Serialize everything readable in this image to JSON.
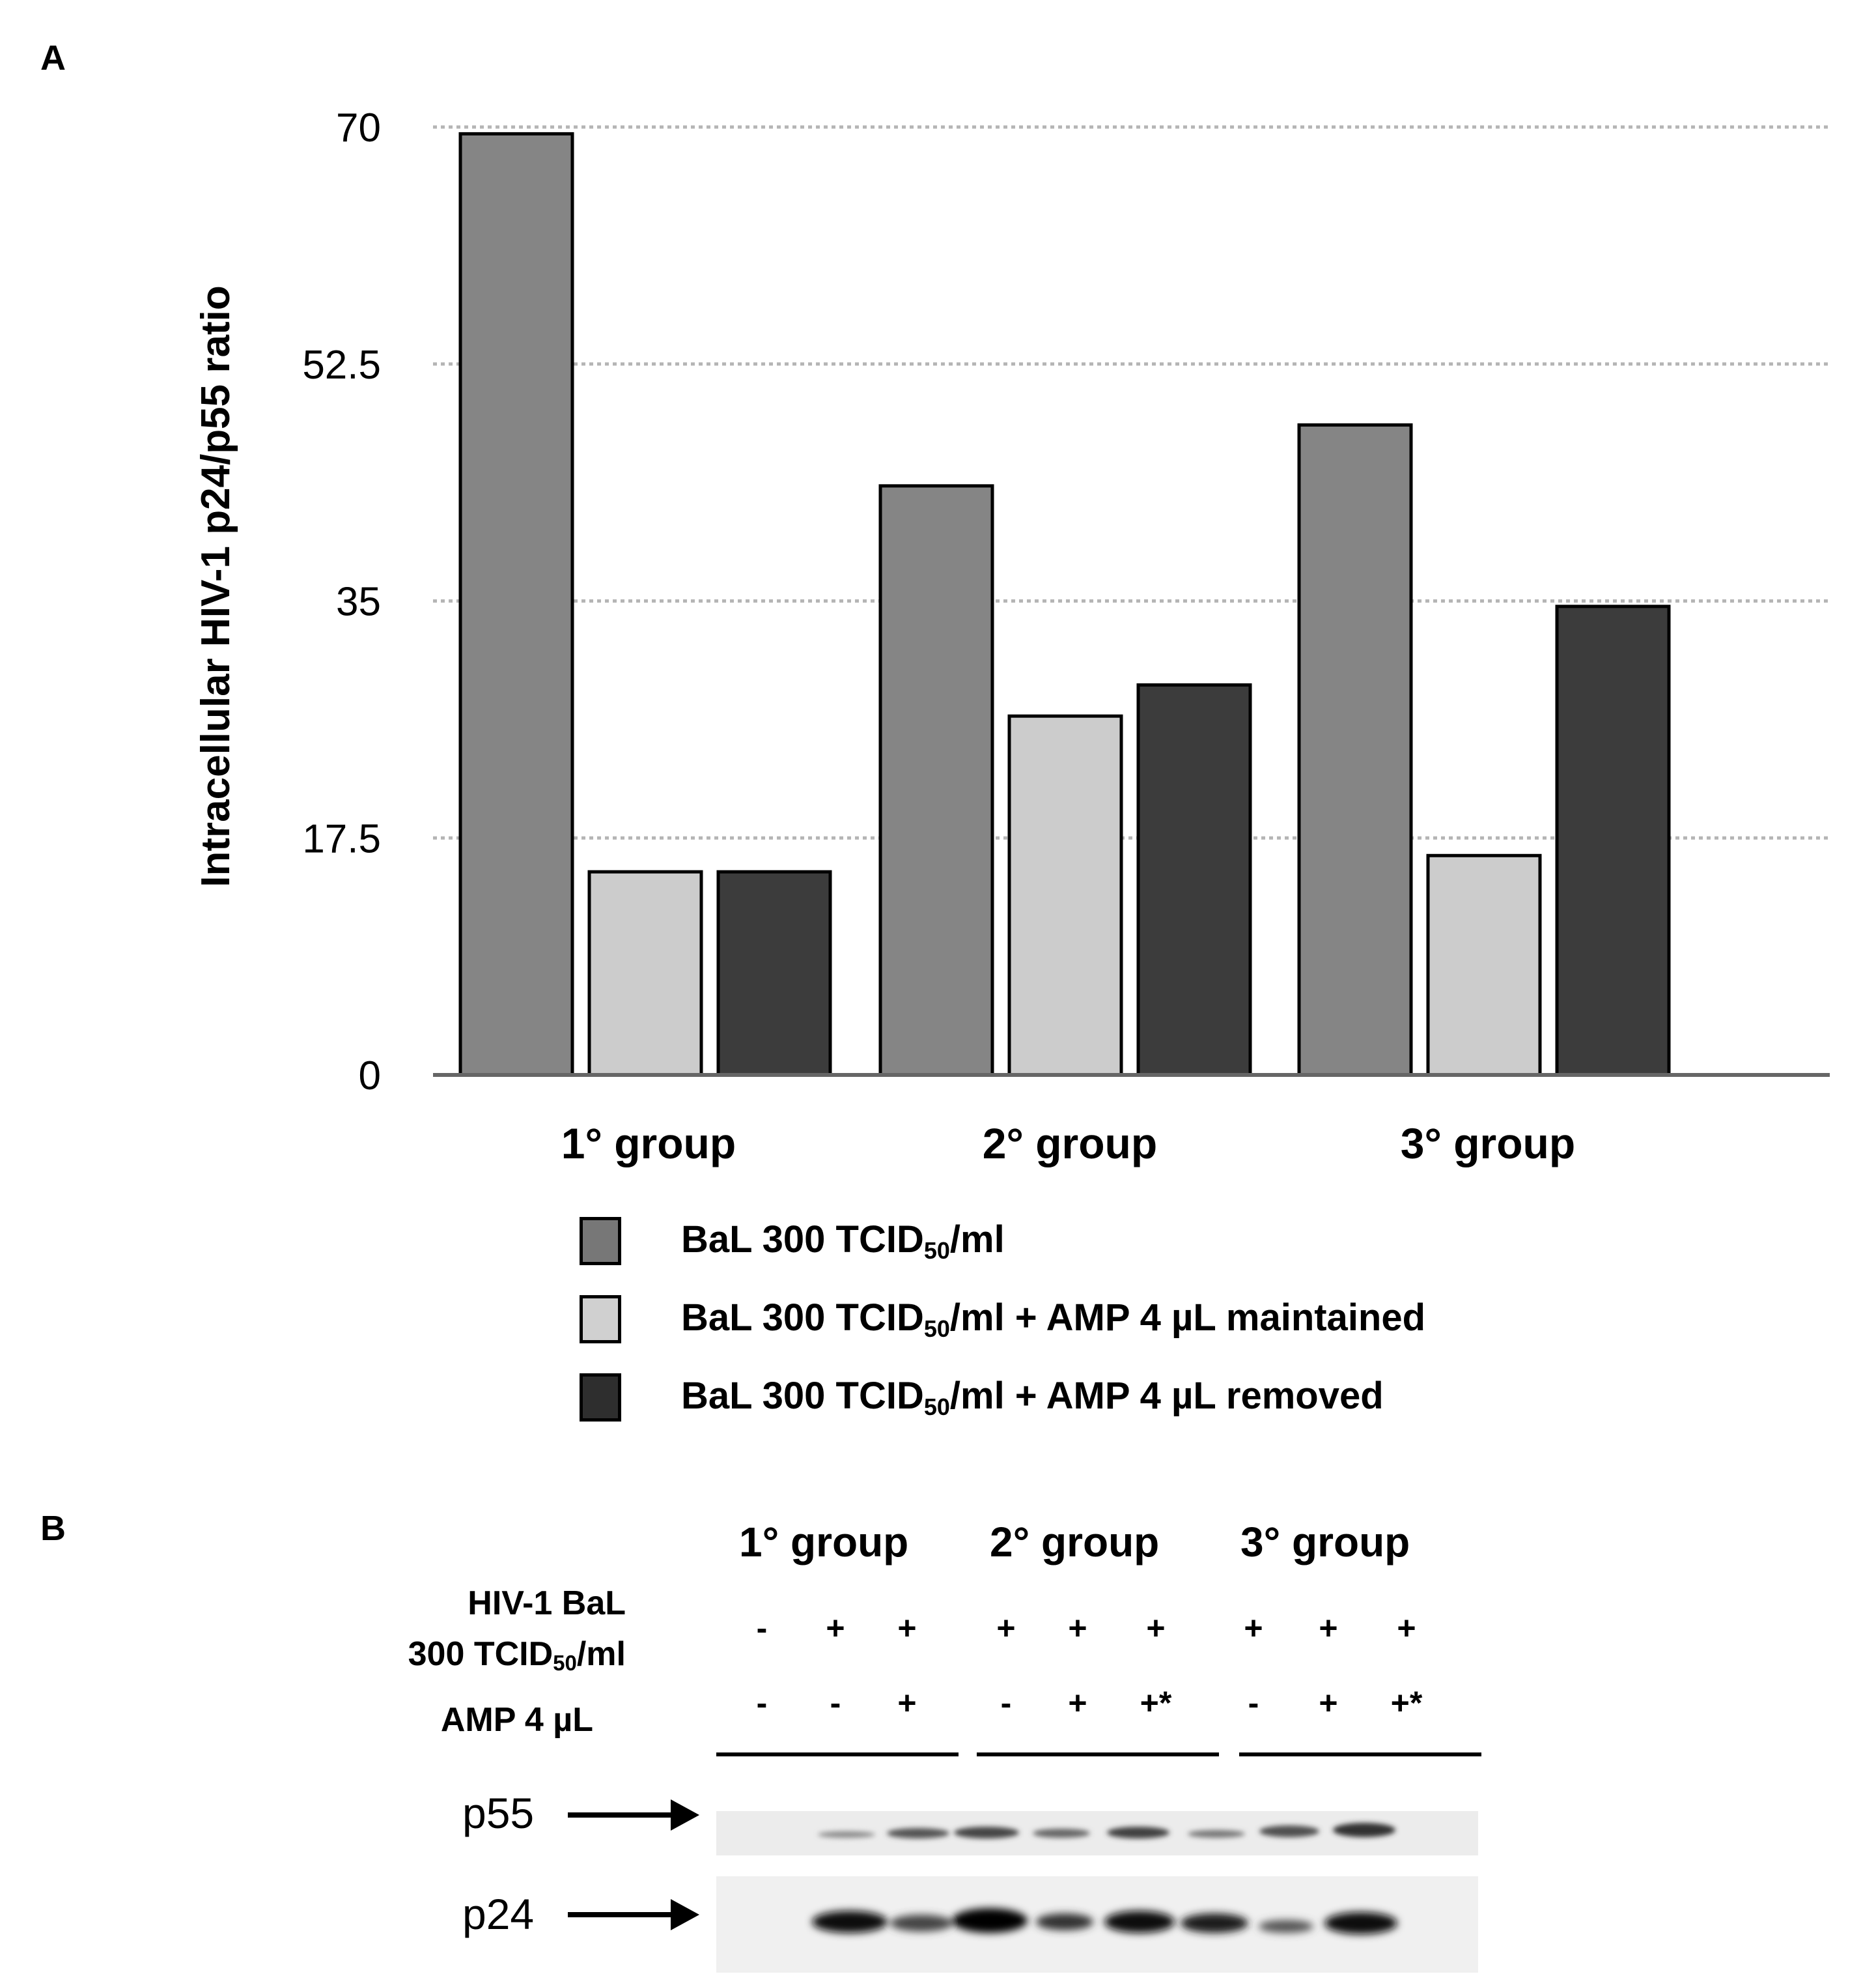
{
  "panel_a_label": "A",
  "panel_b_label": "B",
  "chart_data": {
    "type": "bar",
    "title": "",
    "xlabel": "",
    "ylabel": "Intracellular HIV-1 p24/p55 ratio",
    "ylim": [
      0,
      70
    ],
    "yticks": [
      "0",
      "17.5",
      "35",
      "52.5",
      "70"
    ],
    "grid": true,
    "categories": [
      "1° group",
      "2° group",
      "3° group"
    ],
    "series": [
      {
        "name": "BaL 300 TCID50/ml",
        "color": "#858585",
        "values": [
          69.5,
          43.5,
          48
        ]
      },
      {
        "name": "BaL 300 TCID50/ml + AMP 4 µL maintained",
        "color": "#cccccc",
        "values": [
          15,
          26.5,
          16.2
        ]
      },
      {
        "name": "BaL 300 TCID50/ml + AMP 4 µL removed",
        "color": "#3c3c3c",
        "values": [
          15,
          28.8,
          34.6
        ]
      }
    ]
  },
  "legend": [
    {
      "prefix": "BaL 300  TCID",
      "sub": "50",
      "suffix": "/ml",
      "color": "#777777"
    },
    {
      "prefix": "BaL 300  TCID",
      "sub": "50",
      "suffix": "/ml + AMP 4 µL maintained",
      "color": "#d0d0d0"
    },
    {
      "prefix": "BaL 300  TCID",
      "sub": "50",
      "suffix": "/ml + AMP 4 µL removed",
      "color": "#2e2e2e"
    }
  ],
  "blot": {
    "groups": [
      "1° group",
      "2° group",
      "3° group"
    ],
    "row1_line1": "HIV-1 BaL",
    "row1_line2_prefix": "300 TCID",
    "row1_line2_sub": "50",
    "row1_line2_suffix": "/ml",
    "row2_label": "AMP 4 µL",
    "bal_signs": [
      "-",
      "+",
      "+",
      "+",
      "+",
      "+",
      "+",
      "+",
      "+"
    ],
    "amp_signs": [
      "-",
      "-",
      "+",
      "-",
      "+",
      "+*",
      "-",
      "+",
      "+*"
    ],
    "bands": [
      "p55",
      "p24"
    ]
  }
}
